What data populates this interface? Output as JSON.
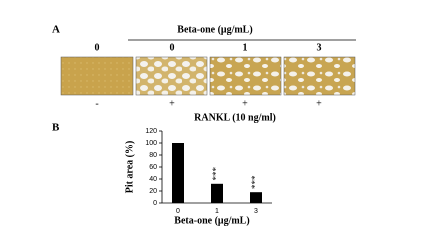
{
  "panel_a": {
    "label": "A",
    "title": "Beta-one (μg/mL)",
    "doses": [
      "0",
      "0",
      "1",
      "3"
    ],
    "rankl": [
      "-",
      "+",
      "+",
      "+"
    ],
    "rankl_label": "RANKL (10 ng/ml)"
  },
  "chart_data": {
    "type": "bar",
    "panel_label": "B",
    "ylabel": "Pit area (%)",
    "xlabel": "Beta-one (μg/mL)",
    "categories": [
      "0",
      "1",
      "3"
    ],
    "values": [
      100,
      32,
      18
    ],
    "value_labels": [
      null,
      "***",
      "***"
    ],
    "color": "#000000",
    "ylim": [
      0,
      120
    ],
    "yticks": [
      0,
      20,
      40,
      60,
      80,
      100,
      120
    ]
  }
}
